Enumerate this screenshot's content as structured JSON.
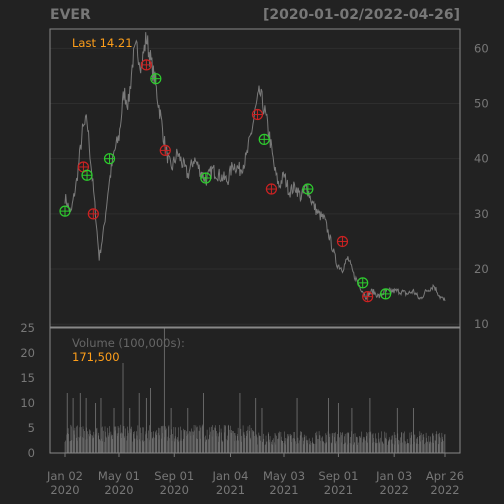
{
  "chart_data": {
    "type": "line",
    "title": "EVER",
    "date_range_label": "[2020-01-02/2022-04-26]",
    "colors": {
      "background": "#222222",
      "panel_border": "#888888",
      "grid": "#2e2e2e",
      "price_line": "#7a7a7a",
      "volume_bar": "#6e6e6e",
      "text": "#777777",
      "accent": "#ff9f1a",
      "buy_marker": "#2ecc2e",
      "sell_marker": "#cc2222"
    },
    "price_panel": {
      "last_label": "Last 14.21",
      "ylim": [
        9.5,
        63.5
      ],
      "ticks": [
        10,
        20,
        30,
        40,
        50,
        60
      ],
      "tick_labels": [
        "10",
        "20",
        "30",
        "40",
        "50",
        "60"
      ],
      "series": [
        {
          "date": "2020-01-02",
          "value": 33
        },
        {
          "date": "2020-01-15",
          "value": 30
        },
        {
          "date": "2020-01-28",
          "value": 36
        },
        {
          "date": "2020-02-10",
          "value": 45
        },
        {
          "date": "2020-02-20",
          "value": 47
        },
        {
          "date": "2020-03-01",
          "value": 38
        },
        {
          "date": "2020-03-10",
          "value": 30
        },
        {
          "date": "2020-03-18",
          "value": 22
        },
        {
          "date": "2020-03-28",
          "value": 27
        },
        {
          "date": "2020-04-08",
          "value": 35
        },
        {
          "date": "2020-04-20",
          "value": 41
        },
        {
          "date": "2020-05-01",
          "value": 44
        },
        {
          "date": "2020-05-12",
          "value": 52
        },
        {
          "date": "2020-05-22",
          "value": 50
        },
        {
          "date": "2020-06-01",
          "value": 58
        },
        {
          "date": "2020-06-10",
          "value": 60
        },
        {
          "date": "2020-06-20",
          "value": 57
        },
        {
          "date": "2020-07-01",
          "value": 62
        },
        {
          "date": "2020-07-10",
          "value": 58
        },
        {
          "date": "2020-07-20",
          "value": 54
        },
        {
          "date": "2020-08-01",
          "value": 48
        },
        {
          "date": "2020-08-12",
          "value": 42
        },
        {
          "date": "2020-08-25",
          "value": 38
        },
        {
          "date": "2020-09-08",
          "value": 41
        },
        {
          "date": "2020-09-20",
          "value": 39
        },
        {
          "date": "2020-10-01",
          "value": 37
        },
        {
          "date": "2020-10-15",
          "value": 40
        },
        {
          "date": "2020-10-28",
          "value": 38
        },
        {
          "date": "2020-11-10",
          "value": 36
        },
        {
          "date": "2020-11-25",
          "value": 38
        },
        {
          "date": "2020-12-10",
          "value": 37
        },
        {
          "date": "2020-12-28",
          "value": 36
        },
        {
          "date": "2021-01-10",
          "value": 39
        },
        {
          "date": "2021-01-25",
          "value": 38
        },
        {
          "date": "2021-02-08",
          "value": 40
        },
        {
          "date": "2021-02-20",
          "value": 45
        },
        {
          "date": "2021-03-01",
          "value": 49
        },
        {
          "date": "2021-03-10",
          "value": 52
        },
        {
          "date": "2021-03-20",
          "value": 49
        },
        {
          "date": "2021-04-01",
          "value": 44
        },
        {
          "date": "2021-04-12",
          "value": 38
        },
        {
          "date": "2021-04-22",
          "value": 35
        },
        {
          "date": "2021-05-03",
          "value": 37
        },
        {
          "date": "2021-05-15",
          "value": 34
        },
        {
          "date": "2021-05-28",
          "value": 35
        },
        {
          "date": "2021-06-10",
          "value": 33
        },
        {
          "date": "2021-06-22",
          "value": 35
        },
        {
          "date": "2021-07-05",
          "value": 32
        },
        {
          "date": "2021-07-18",
          "value": 30
        },
        {
          "date": "2021-08-01",
          "value": 29
        },
        {
          "date": "2021-08-15",
          "value": 25
        },
        {
          "date": "2021-08-28",
          "value": 21
        },
        {
          "date": "2021-09-10",
          "value": 20
        },
        {
          "date": "2021-09-22",
          "value": 22
        },
        {
          "date": "2021-10-05",
          "value": 19
        },
        {
          "date": "2021-10-18",
          "value": 17
        },
        {
          "date": "2021-11-01",
          "value": 15
        },
        {
          "date": "2021-11-15",
          "value": 16
        },
        {
          "date": "2021-12-01",
          "value": 15
        },
        {
          "date": "2021-12-15",
          "value": 16
        },
        {
          "date": "2022-01-01",
          "value": 16
        },
        {
          "date": "2022-01-15",
          "value": 16
        },
        {
          "date": "2022-02-01",
          "value": 15.5
        },
        {
          "date": "2022-02-15",
          "value": 16
        },
        {
          "date": "2022-03-01",
          "value": 14.5
        },
        {
          "date": "2022-03-15",
          "value": 16
        },
        {
          "date": "2022-04-01",
          "value": 17
        },
        {
          "date": "2022-04-15",
          "value": 15
        },
        {
          "date": "2022-04-26",
          "value": 14.21
        }
      ],
      "buy_signals": [
        {
          "date": "2020-01-02",
          "value": 30.5
        },
        {
          "date": "2020-02-20",
          "value": 37
        },
        {
          "date": "2020-04-10",
          "value": 40
        },
        {
          "date": "2020-07-22",
          "value": 54.5
        },
        {
          "date": "2020-11-10",
          "value": 36.5
        },
        {
          "date": "2021-03-20",
          "value": 43.5
        },
        {
          "date": "2021-06-25",
          "value": 34.5
        },
        {
          "date": "2021-10-25",
          "value": 17.5
        },
        {
          "date": "2021-12-15",
          "value": 15.5
        }
      ],
      "sell_signals": [
        {
          "date": "2020-02-12",
          "value": 38.5
        },
        {
          "date": "2020-03-05",
          "value": 30
        },
        {
          "date": "2020-07-01",
          "value": 57
        },
        {
          "date": "2020-08-12",
          "value": 41.5
        },
        {
          "date": "2021-03-05",
          "value": 48
        },
        {
          "date": "2021-04-05",
          "value": 34.5
        },
        {
          "date": "2021-09-10",
          "value": 25
        },
        {
          "date": "2021-11-05",
          "value": 15
        }
      ]
    },
    "volume_panel": {
      "label": "Volume (100,000s):",
      "last_value_label": "171,500",
      "ylim": [
        0,
        25
      ],
      "ticks": [
        0,
        5,
        10,
        15,
        20,
        25
      ],
      "tick_labels": [
        "0",
        "5",
        "10",
        "15",
        "20",
        "25"
      ],
      "spikes": [
        {
          "date": "2020-01-07",
          "value": 12
        },
        {
          "date": "2020-01-20",
          "value": 11
        },
        {
          "date": "2020-02-05",
          "value": 12
        },
        {
          "date": "2020-02-18",
          "value": 11
        },
        {
          "date": "2020-03-10",
          "value": 10
        },
        {
          "date": "2020-03-22",
          "value": 11
        },
        {
          "date": "2020-04-20",
          "value": 9
        },
        {
          "date": "2020-05-10",
          "value": 18
        },
        {
          "date": "2020-05-25",
          "value": 9
        },
        {
          "date": "2020-06-15",
          "value": 12
        },
        {
          "date": "2020-07-01",
          "value": 11
        },
        {
          "date": "2020-07-10",
          "value": 13
        },
        {
          "date": "2020-08-10",
          "value": 25
        },
        {
          "date": "2020-08-25",
          "value": 9
        },
        {
          "date": "2020-10-01",
          "value": 9
        },
        {
          "date": "2020-11-05",
          "value": 12
        },
        {
          "date": "2021-01-25",
          "value": 12
        },
        {
          "date": "2021-03-01",
          "value": 11
        },
        {
          "date": "2021-03-15",
          "value": 9
        },
        {
          "date": "2021-06-01",
          "value": 11
        },
        {
          "date": "2021-08-10",
          "value": 11
        },
        {
          "date": "2021-09-01",
          "value": 10
        },
        {
          "date": "2021-10-01",
          "value": 9
        },
        {
          "date": "2021-11-10",
          "value": 11
        },
        {
          "date": "2022-01-10",
          "value": 9
        },
        {
          "date": "2022-02-15",
          "value": 9
        }
      ]
    },
    "x_axis": {
      "range": [
        "2020-01-02",
        "2022-04-26"
      ],
      "ticks": [
        {
          "date": "2020-01-02",
          "line1": "Jan 02",
          "line2": "2020"
        },
        {
          "date": "2020-05-01",
          "line1": "May 01",
          "line2": "2020"
        },
        {
          "date": "2020-09-01",
          "line1": "Sep 01",
          "line2": "2020"
        },
        {
          "date": "2021-01-04",
          "line1": "Jan 04",
          "line2": "2021"
        },
        {
          "date": "2021-05-03",
          "line1": "May 03",
          "line2": "2021"
        },
        {
          "date": "2021-09-01",
          "line1": "Sep 01",
          "line2": "2021"
        },
        {
          "date": "2022-01-03",
          "line1": "Jan 03",
          "line2": "2022"
        },
        {
          "date": "2022-04-26",
          "line1": "Apr 26",
          "line2": "2022"
        }
      ]
    }
  }
}
